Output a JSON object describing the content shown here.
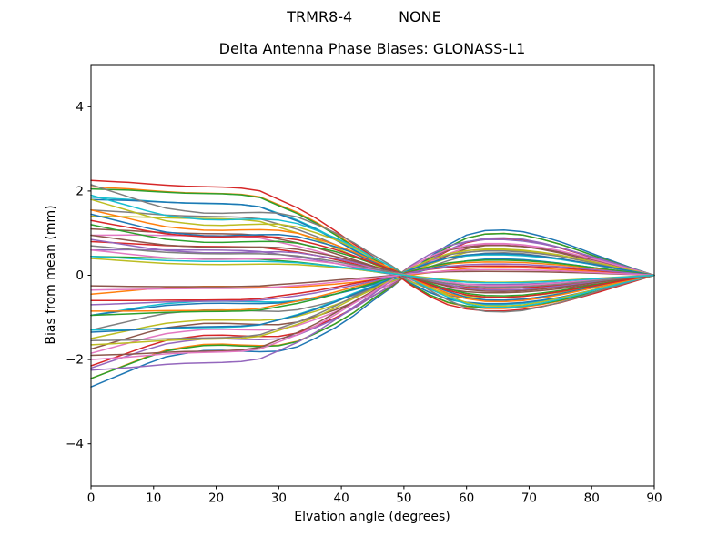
{
  "chart_data": {
    "type": "line",
    "suptitle": "TRMR8-4          NONE",
    "title": "Delta Antenna Phase Biases: GLONASS-L1",
    "xlabel": "Elvation angle (degrees)",
    "ylabel": "Bias from mean (mm)",
    "xlim": [
      0,
      90
    ],
    "ylim": [
      -5,
      5
    ],
    "xticks": [
      0,
      10,
      20,
      30,
      40,
      50,
      60,
      70,
      80,
      90
    ],
    "yticks": [
      -4,
      -2,
      0,
      2,
      4
    ],
    "grid": false,
    "legend": "none",
    "background_color": "#ffffff",
    "axis_color": "#000000",
    "line_colors": [
      "#1f77b4",
      "#ff7f0e",
      "#2ca02c",
      "#d62728",
      "#9467bd",
      "#8c564b",
      "#e377c2",
      "#7f7f7f",
      "#bcbd22",
      "#17becf"
    ],
    "x": [
      0,
      3,
      6,
      9,
      12,
      15,
      18,
      21,
      24,
      27,
      30,
      33,
      36,
      39,
      42,
      45,
      48,
      51,
      54,
      57,
      60,
      63,
      66,
      69,
      72,
      75,
      78,
      81,
      84,
      87,
      90
    ],
    "basis1": [
      1.0,
      0.99,
      0.98,
      0.965,
      0.95,
      0.94,
      0.935,
      0.93,
      0.92,
      0.89,
      0.8,
      0.71,
      0.6,
      0.47,
      0.33,
      0.2,
      0.05,
      -0.1,
      -0.22,
      -0.31,
      -0.355,
      -0.375,
      -0.375,
      -0.36,
      -0.33,
      -0.29,
      -0.235,
      -0.18,
      -0.12,
      -0.06,
      0.0
    ],
    "basis2": [
      -1.0,
      -0.93,
      -0.86,
      -0.79,
      -0.73,
      -0.7,
      -0.675,
      -0.672,
      -0.68,
      -0.685,
      -0.68,
      -0.64,
      -0.56,
      -0.47,
      -0.36,
      -0.23,
      -0.11,
      0.03,
      0.16,
      0.27,
      0.36,
      0.4,
      0.405,
      0.39,
      0.35,
      0.3,
      0.24,
      0.175,
      0.115,
      0.055,
      0.0
    ],
    "series": [
      {
        "a": 0.0,
        "b": 2.65
      },
      {
        "a": 0.05,
        "b": 2.5
      },
      {
        "a": -0.05,
        "b": 2.4
      },
      {
        "a": 0.1,
        "b": 2.25
      },
      {
        "a": -0.1,
        "b": 2.1
      },
      {
        "a": 0.15,
        "b": 1.9
      },
      {
        "a": -0.15,
        "b": 1.7
      },
      {
        "a": 0.2,
        "b": 1.5
      },
      {
        "a": -0.2,
        "b": 1.3
      },
      {
        "a": 0.1,
        "b": 1.05
      },
      {
        "a": -0.1,
        "b": 0.85
      },
      {
        "a": 0.15,
        "b": 0.6
      },
      {
        "a": 0.35,
        "b": -0.1
      },
      {
        "a": 0.55,
        "b": -0.25
      },
      {
        "a": 0.75,
        "b": 0.15
      },
      {
        "a": 0.95,
        "b": -0.15
      },
      {
        "a": 1.15,
        "b": 0.2
      },
      {
        "a": 1.35,
        "b": -0.2
      },
      {
        "a": 1.55,
        "b": 0.15
      },
      {
        "a": 1.75,
        "b": -0.1
      },
      {
        "a": 1.9,
        "b": 0.1
      },
      {
        "a": 2.05,
        "b": -0.05
      },
      {
        "a": 2.15,
        "b": 0.1
      },
      {
        "a": 2.25,
        "b": 0.0
      },
      {
        "a": -2.15,
        "b": 0.1
      },
      {
        "a": -2.0,
        "b": -0.1
      },
      {
        "a": -1.85,
        "b": 0.15
      },
      {
        "a": -1.7,
        "b": -0.15
      },
      {
        "a": -1.55,
        "b": 0.1
      },
      {
        "a": -1.4,
        "b": -0.1
      },
      {
        "a": -1.2,
        "b": 0.15
      },
      {
        "a": -1.0,
        "b": -0.15
      },
      {
        "a": -0.85,
        "b": 0.1
      },
      {
        "a": -0.7,
        "b": -0.1
      },
      {
        "a": -0.55,
        "b": 0.15
      },
      {
        "a": -0.4,
        "b": -0.15
      },
      {
        "a": -0.3,
        "b": 0.05
      },
      {
        "a": 0.1,
        "b": -2.05
      },
      {
        "a": -0.1,
        "b": -1.9
      },
      {
        "a": 0.15,
        "b": -1.75
      },
      {
        "a": -0.15,
        "b": -1.6
      },
      {
        "a": 0.1,
        "b": -1.45
      },
      {
        "a": -0.1,
        "b": -1.3
      },
      {
        "a": 0.15,
        "b": -1.15
      },
      {
        "a": -0.15,
        "b": -1.0
      },
      {
        "a": 0.1,
        "b": -0.85
      },
      {
        "a": -0.1,
        "b": -0.7
      },
      {
        "a": 0.15,
        "b": -0.55
      },
      {
        "a": -0.05,
        "b": -0.45
      },
      {
        "a": 0.1,
        "b": -0.35
      }
    ]
  }
}
